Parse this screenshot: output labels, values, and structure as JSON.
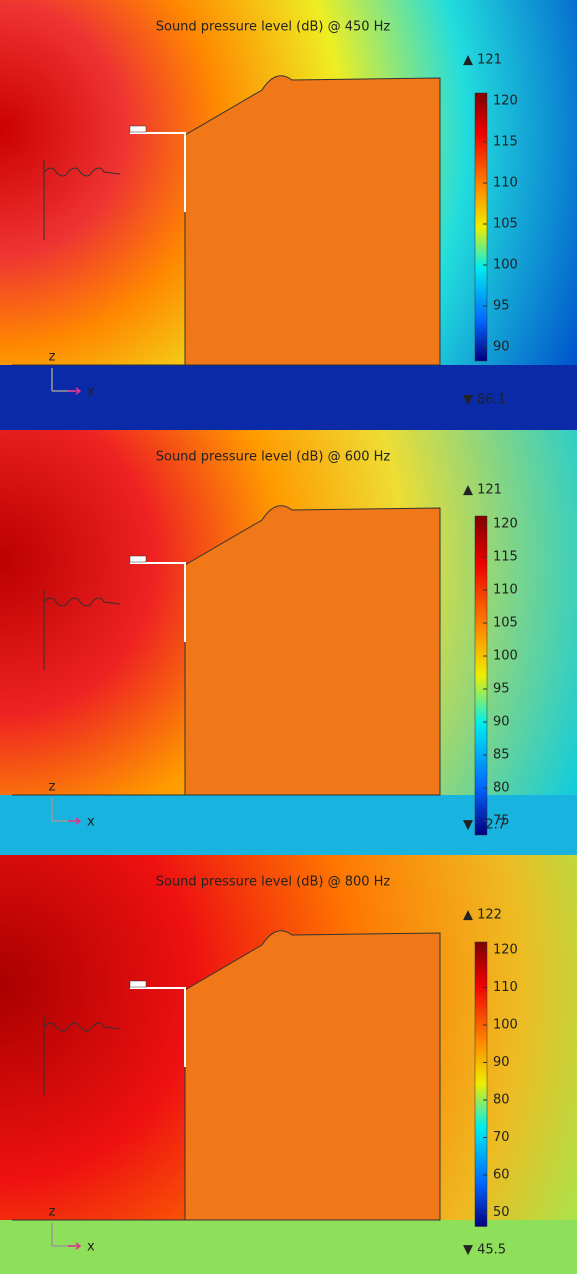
{
  "panels": [
    {
      "title": "Sound pressure level (dB) @ 450 Hz",
      "max": "▲ 121",
      "min": "▼ 86.1",
      "ticks": [
        120,
        115,
        110,
        105,
        100,
        95,
        90
      ],
      "axis_z": "z",
      "axis_x": "x"
    },
    {
      "title": "Sound pressure level (dB) @ 600 Hz",
      "max": "▲ 121",
      "min": "▼ 72.7",
      "ticks": [
        120,
        115,
        110,
        105,
        100,
        95,
        90,
        85,
        80,
        75
      ],
      "axis_z": "z",
      "axis_x": "x"
    },
    {
      "title": "Sound pressure level (dB) @ 800 Hz",
      "max": "▲ 122",
      "min": "▼ 45.5",
      "ticks": [
        120,
        110,
        100,
        90,
        80,
        70,
        60,
        50
      ],
      "axis_z": "z",
      "axis_x": "x"
    }
  ]
}
